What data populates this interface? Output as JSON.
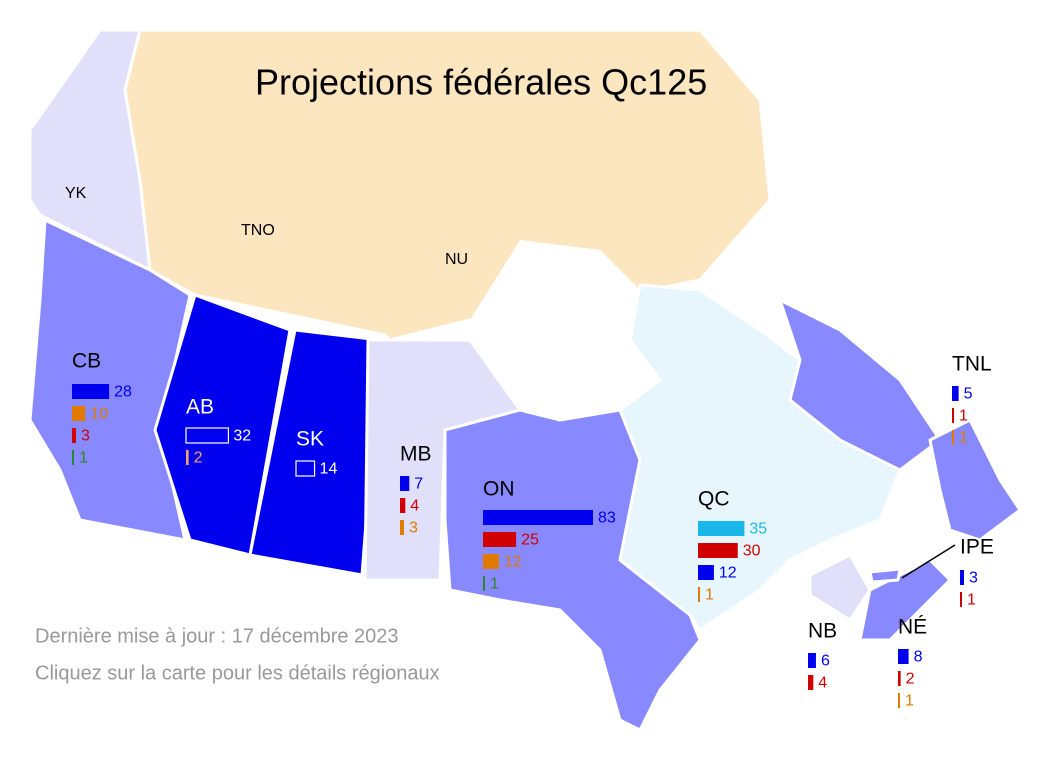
{
  "title": "Projections fédérales Qc125",
  "territories": [
    "YK",
    "TNO",
    "NU"
  ],
  "provinces": [
    {
      "name": "CB",
      "bars": [
        {
          "value": 28,
          "color": "#0000ee"
        },
        {
          "value": 10,
          "color": "#e07b00"
        },
        {
          "value": 3,
          "color": "#d00000"
        },
        {
          "value": 1,
          "color": "#2a8a2a"
        }
      ]
    },
    {
      "name": "AB",
      "bars": [
        {
          "value": 32,
          "color": "#ffffff"
        },
        {
          "value": 2,
          "color": "#f0a070"
        }
      ]
    },
    {
      "name": "SK",
      "bars": [
        {
          "value": 14,
          "color": "#ffffff"
        }
      ]
    },
    {
      "name": "MB",
      "bars": [
        {
          "value": 7,
          "color": "#0000ee"
        },
        {
          "value": 4,
          "color": "#d00000"
        },
        {
          "value": 3,
          "color": "#e07b00"
        }
      ]
    },
    {
      "name": "ON",
      "bars": [
        {
          "value": 83,
          "color": "#0000ee"
        },
        {
          "value": 25,
          "color": "#d00000"
        },
        {
          "value": 12,
          "color": "#e07b00"
        },
        {
          "value": 1,
          "color": "#2a8a2a"
        }
      ]
    },
    {
      "name": "QC",
      "bars": [
        {
          "value": 35,
          "color": "#1ab8e8"
        },
        {
          "value": 30,
          "color": "#d00000"
        },
        {
          "value": 12,
          "color": "#0000ee"
        },
        {
          "value": 1,
          "color": "#e07b00"
        }
      ]
    },
    {
      "name": "TNL",
      "bars": [
        {
          "value": 5,
          "color": "#0000ee"
        },
        {
          "value": 1,
          "color": "#d00000"
        },
        {
          "value": 1,
          "color": "#e07b00"
        }
      ]
    },
    {
      "name": "IPE",
      "bars": [
        {
          "value": 3,
          "color": "#0000ee"
        },
        {
          "value": 1,
          "color": "#d00000"
        }
      ]
    },
    {
      "name": "NB",
      "bars": [
        {
          "value": 6,
          "color": "#0000ee"
        },
        {
          "value": 4,
          "color": "#d00000"
        }
      ]
    },
    {
      "name": "NÉ",
      "bars": [
        {
          "value": 8,
          "color": "#0000ee"
        },
        {
          "value": 2,
          "color": "#d00000"
        },
        {
          "value": 1,
          "color": "#e07b00"
        }
      ]
    }
  ],
  "footer": [
    "Dernière mise à jour : 17 décembre 2023",
    "Cliquez sur la carte pour les détails régionaux"
  ]
}
